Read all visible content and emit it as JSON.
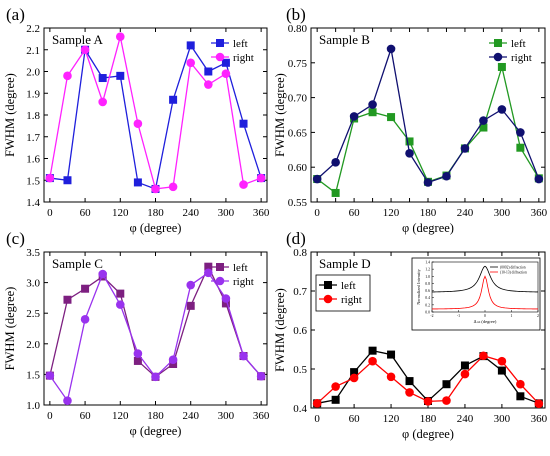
{
  "chart_data": [
    {
      "type": "line",
      "panel_label": "(a)",
      "title": "Sample A",
      "xlabel": "φ (degree)",
      "ylabel": "FWHM (degree)",
      "xlim": [
        -10,
        370
      ],
      "ylim": [
        1.4,
        2.2
      ],
      "xticks": [
        0,
        60,
        120,
        180,
        240,
        300,
        360
      ],
      "yticks": [
        1.4,
        1.5,
        1.6,
        1.7,
        1.8,
        1.9,
        2.0,
        2.1,
        2.2
      ],
      "ytick_labels": [
        "1.4",
        "1.5",
        "1.6",
        "1.7",
        "1.8",
        "1.9",
        "2.0",
        "2.1",
        "2.2"
      ],
      "legend": "top-right",
      "x": [
        0,
        30,
        60,
        90,
        120,
        150,
        180,
        210,
        240,
        270,
        300,
        330,
        360
      ],
      "series": [
        {
          "name": "left",
          "color": "#1f1fdc",
          "marker": "square",
          "values": [
            1.51,
            1.5,
            2.1,
            1.97,
            1.98,
            1.49,
            1.46,
            1.87,
            2.12,
            2.0,
            2.04,
            1.76,
            1.51
          ]
        },
        {
          "name": "right",
          "color": "#ff22ff",
          "marker": "circle",
          "values": [
            1.51,
            1.98,
            2.1,
            1.86,
            2.16,
            1.76,
            1.46,
            1.47,
            2.04,
            1.94,
            1.99,
            1.48,
            1.51
          ]
        }
      ]
    },
    {
      "type": "line",
      "panel_label": "(b)",
      "title": "Sample B",
      "xlabel": "φ (degree)",
      "ylabel": "FWHM (degree)",
      "xlim": [
        -10,
        370
      ],
      "ylim": [
        0.55,
        0.8
      ],
      "xticks": [
        0,
        30,
        60,
        90,
        120,
        150,
        180,
        210,
        240,
        270,
        300,
        330,
        360
      ],
      "xtick_labels": [
        "0",
        "",
        "60",
        "",
        "120",
        "",
        "180",
        "",
        "240",
        "",
        "300",
        "",
        "360"
      ],
      "yticks": [
        0.55,
        0.6,
        0.65,
        0.7,
        0.75,
        0.8
      ],
      "ytick_labels": [
        "0.55",
        "0.60",
        "0.65",
        "0.70",
        "0.75",
        "0.80"
      ],
      "legend": "top-right",
      "x": [
        0,
        30,
        60,
        90,
        120,
        150,
        180,
        210,
        240,
        270,
        300,
        330,
        360
      ],
      "series": [
        {
          "name": "left",
          "color": "#229922",
          "marker": "square",
          "values": [
            0.583,
            0.563,
            0.67,
            0.679,
            0.672,
            0.637,
            0.579,
            0.588,
            0.627,
            0.657,
            0.744,
            0.628,
            0.584
          ]
        },
        {
          "name": "right",
          "color": "#101070",
          "marker": "circle",
          "values": [
            0.583,
            0.607,
            0.673,
            0.69,
            0.77,
            0.62,
            0.578,
            0.587,
            0.627,
            0.667,
            0.683,
            0.65,
            0.583
          ]
        }
      ]
    },
    {
      "type": "line",
      "panel_label": "(c)",
      "title": "Sample C",
      "xlabel": "φ (degree)",
      "ylabel": "FWHM (degree)",
      "xlim": [
        -10,
        370
      ],
      "ylim": [
        1.0,
        3.5
      ],
      "xticks": [
        0,
        60,
        120,
        180,
        240,
        300,
        360
      ],
      "yticks": [
        1.0,
        1.5,
        2.0,
        2.5,
        3.0,
        3.5
      ],
      "ytick_labels": [
        "1.0",
        "1.5",
        "2.0",
        "2.5",
        "3.0",
        "3.5"
      ],
      "legend": "top-right",
      "x": [
        0,
        30,
        60,
        90,
        120,
        150,
        180,
        210,
        240,
        270,
        300,
        330,
        360
      ],
      "series": [
        {
          "name": "left",
          "color": "#7d1f80",
          "marker": "square",
          "values": [
            1.48,
            2.72,
            2.9,
            3.1,
            2.82,
            1.72,
            1.46,
            1.67,
            2.62,
            3.26,
            2.66,
            1.8,
            1.47
          ]
        },
        {
          "name": "right",
          "color": "#9932ee",
          "marker": "circle",
          "values": [
            1.48,
            1.07,
            2.4,
            3.14,
            2.64,
            1.84,
            1.46,
            1.74,
            2.96,
            3.16,
            2.74,
            1.8,
            1.47
          ]
        }
      ]
    },
    {
      "type": "line",
      "panel_label": "(d)",
      "title": "Sample D",
      "xlabel": "φ (degree)",
      "ylabel": "FWHM (degree)",
      "xlim": [
        -10,
        370
      ],
      "ylim": [
        0.4,
        0.8
      ],
      "xticks": [
        0,
        60,
        120,
        180,
        240,
        300,
        360
      ],
      "yticks": [
        0.4,
        0.5,
        0.6,
        0.7,
        0.8
      ],
      "ytick_labels": [
        "0.4",
        "0.5",
        "0.6",
        "0.7",
        "0.8"
      ],
      "legend": "top-left",
      "x": [
        0,
        30,
        60,
        90,
        120,
        150,
        180,
        210,
        240,
        270,
        300,
        330,
        360
      ],
      "series": [
        {
          "name": "left",
          "color": "#000000",
          "marker": "square",
          "values": [
            0.412,
            0.421,
            0.492,
            0.547,
            0.537,
            0.469,
            0.418,
            0.461,
            0.509,
            0.533,
            0.496,
            0.43,
            0.412
          ]
        },
        {
          "name": "right",
          "color": "#ff0000",
          "marker": "circle",
          "values": [
            0.412,
            0.455,
            0.477,
            0.52,
            0.48,
            0.44,
            0.417,
            0.419,
            0.487,
            0.534,
            0.52,
            0.461,
            0.411
          ]
        }
      ],
      "inset": {
        "type": "line",
        "xlabel": "Δ ω (degree)",
        "ylabel": "Normalized Intensity",
        "xlim": [
          -2,
          2
        ],
        "ylim": [
          0.0,
          1.4
        ],
        "xticks": [
          -2,
          -1,
          0,
          1,
          2
        ],
        "yticks": [
          0.0,
          0.2,
          0.4,
          0.6,
          0.8,
          1.0,
          1.2,
          1.4
        ],
        "ytick_labels": [
          "0.0",
          "0.2",
          "0.4",
          "0.6",
          "0.8",
          "1.0",
          "1.2",
          "1.4"
        ],
        "legend": "top-right",
        "series": [
          {
            "name": "(0002) diffraction",
            "color": "#000000",
            "baseline": 0.55,
            "peak": 1.28,
            "width": 0.25
          },
          {
            "name": "(10-13) diffraction",
            "color": "#ff0000",
            "baseline": 0.08,
            "peak": 1.0,
            "width": 0.15
          }
        ]
      }
    }
  ]
}
